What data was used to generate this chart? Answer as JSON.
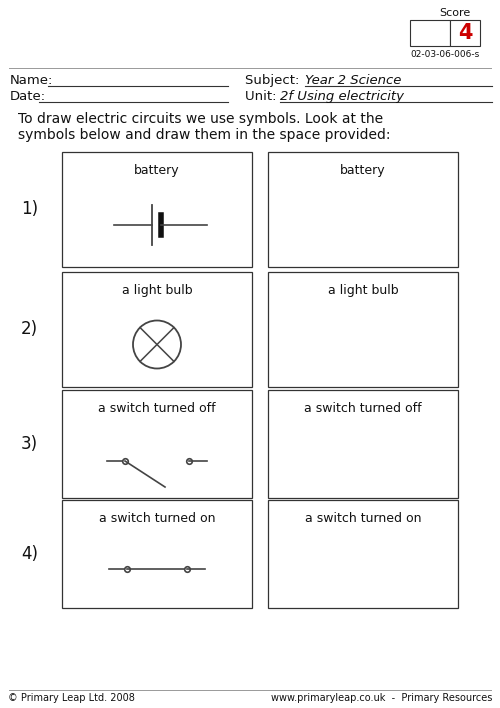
{
  "score_label": "Score",
  "score_value": "4",
  "score_code": "02-03-06-006-s",
  "name_label": "Name:",
  "date_label": "Date:",
  "subject_label": "Subject: ",
  "subject_value": "Year 2 Science",
  "unit_label": "Unit: ",
  "unit_value": "2f Using electricity",
  "instruction_line1": "To draw electric circuits we use symbols. Look at the",
  "instruction_line2": "symbols below and draw them in the space provided:",
  "items": [
    {
      "number": "1)",
      "label": "battery"
    },
    {
      "number": "2)",
      "label": "a light bulb"
    },
    {
      "number": "3)",
      "label": "a switch turned off"
    },
    {
      "number": "4)",
      "label": "a switch turned on"
    }
  ],
  "footer_left": "© Primary Leap Ltd. 2008",
  "footer_right": "www.primaryleap.co.uk  -  Primary Resources",
  "bg_color": "#ffffff",
  "box_edge_color": "#333333",
  "text_color": "#111111",
  "red_color": "#cc0000",
  "symbol_color": "#444444",
  "divider_color": "#999999"
}
